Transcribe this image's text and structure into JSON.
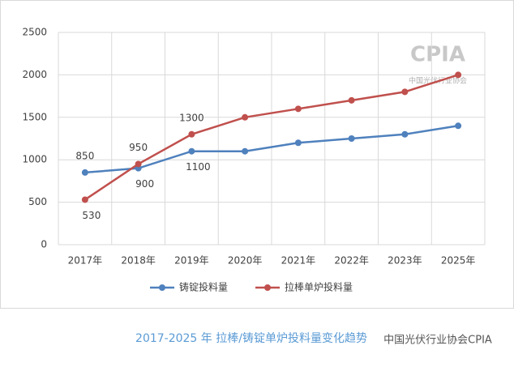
{
  "chart_data": {
    "type": "line",
    "categories": [
      "2017年",
      "2018年",
      "2019年",
      "2020年",
      "2021年",
      "2022年",
      "2023年",
      "2025年"
    ],
    "series": [
      {
        "name": "铸锭投料量",
        "color": "#4f81bd",
        "values": [
          850,
          900,
          1100,
          1100,
          1200,
          1250,
          1300,
          1400
        ],
        "value_labels": [
          "850",
          "900",
          "1100",
          null,
          null,
          null,
          null,
          null
        ]
      },
      {
        "name": "拉棒单炉投料量",
        "color": "#c0504d",
        "values": [
          530,
          950,
          1300,
          1500,
          1600,
          1700,
          1800,
          2000
        ],
        "value_labels": [
          "530",
          "950",
          "1300",
          null,
          null,
          null,
          null,
          null
        ]
      }
    ],
    "ylim": [
      0,
      2500
    ],
    "yticks": [
      0,
      500,
      1000,
      1500,
      2000,
      2500
    ],
    "grid": true,
    "legend": "bottom",
    "caption": "2017-2025 年  拉棒/铸锭单炉投料量变化趋势",
    "logo": "CPIA",
    "logo_subtitle": "中国光伏行业协会",
    "watermark": "中国光伏行业协会CPIA"
  }
}
